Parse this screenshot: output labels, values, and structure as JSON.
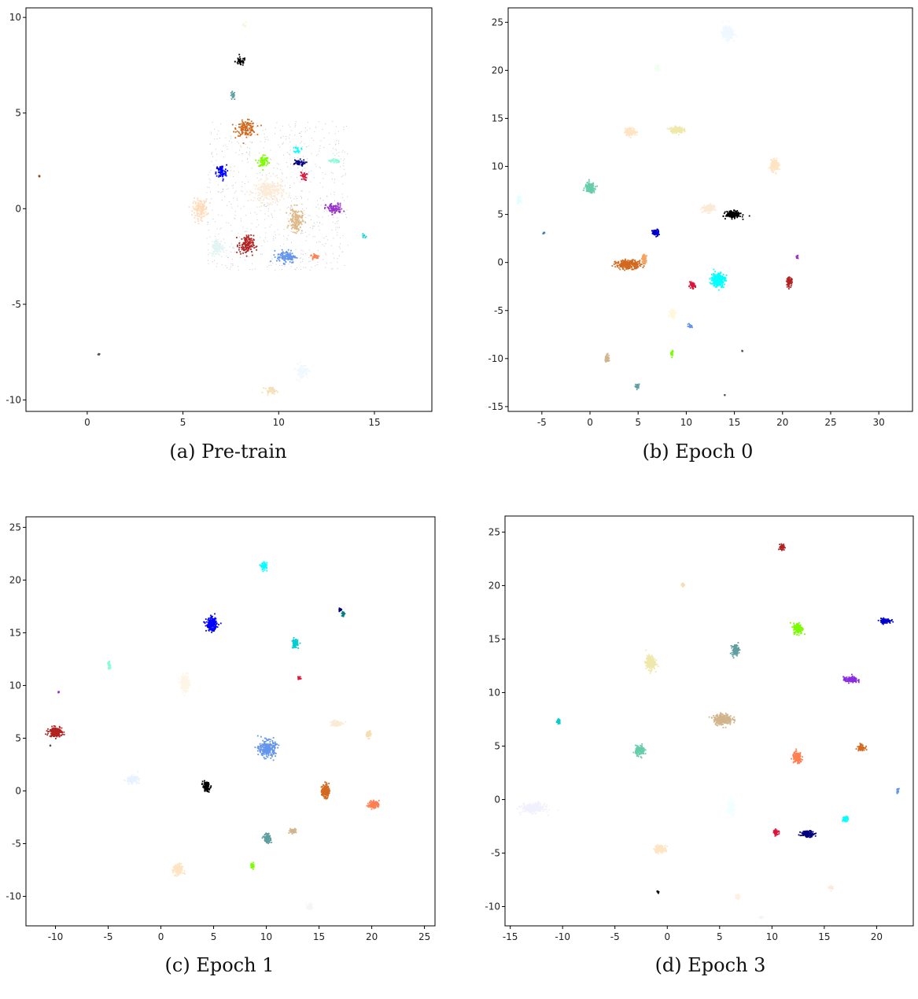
{
  "figure": {
    "captions": [
      "(a) Pre-train",
      "(b) Epoch 0",
      "(c) Epoch 1",
      "(d) Epoch 3"
    ]
  },
  "chart_data": [
    {
      "type": "scatter",
      "caption": "(a) Pre-train",
      "xlim": [
        -3.2,
        18.0
      ],
      "ylim": [
        -10.6,
        10.5
      ],
      "xticks": [
        0,
        5,
        10,
        15
      ],
      "yticks": [
        -10,
        -5,
        0,
        5,
        10
      ],
      "grid": false,
      "background_points": {
        "color": "#b0b0b0",
        "x_range": [
          6.2,
          13.6
        ],
        "y_range": [
          -3.2,
          4.6
        ],
        "density": "sparse"
      },
      "clusters": [
        {
          "color": "#000000",
          "x": 8.0,
          "y": 7.7,
          "spread": [
            0.25,
            0.2
          ]
        },
        {
          "color": "#5f9ea0",
          "x": 7.6,
          "y": 5.9,
          "spread": [
            0.12,
            0.2
          ]
        },
        {
          "color": "#d2691e",
          "x": 8.3,
          "y": 4.2,
          "spread": [
            0.45,
            0.35
          ]
        },
        {
          "color": "#0000ff",
          "x": 7.0,
          "y": 1.9,
          "spread": [
            0.25,
            0.35
          ]
        },
        {
          "color": "#7cfc00",
          "x": 9.2,
          "y": 2.5,
          "spread": [
            0.25,
            0.3
          ]
        },
        {
          "color": "#00ffff",
          "x": 11.0,
          "y": 3.1,
          "spread": [
            0.15,
            0.15
          ]
        },
        {
          "color": "#000080",
          "x": 11.0,
          "y": 2.4,
          "spread": [
            0.35,
            0.15
          ]
        },
        {
          "color": "#dc143c",
          "x": 11.3,
          "y": 1.7,
          "spread": [
            0.15,
            0.2
          ]
        },
        {
          "color": "#7fffd4",
          "x": 12.9,
          "y": 2.5,
          "spread": [
            0.25,
            0.1
          ]
        },
        {
          "color": "#9932cc",
          "x": 12.9,
          "y": 0.0,
          "spread": [
            0.4,
            0.25
          ]
        },
        {
          "color": "#ffdab9",
          "x": 5.9,
          "y": 0.0,
          "spread": [
            0.35,
            0.45
          ]
        },
        {
          "color": "#faebd7",
          "x": 9.5,
          "y": 0.9,
          "spread": [
            0.7,
            0.5
          ]
        },
        {
          "color": "#deb887",
          "x": 10.9,
          "y": -0.6,
          "spread": [
            0.3,
            0.55
          ]
        },
        {
          "color": "#b22222",
          "x": 8.3,
          "y": -1.9,
          "spread": [
            0.35,
            0.45
          ]
        },
        {
          "color": "#6495ed",
          "x": 10.4,
          "y": -2.5,
          "spread": [
            0.45,
            0.3
          ]
        },
        {
          "color": "#ff7f50",
          "x": 11.9,
          "y": -2.5,
          "spread": [
            0.2,
            0.15
          ]
        },
        {
          "color": "#00ced1",
          "x": 14.5,
          "y": -1.4,
          "spread": [
            0.1,
            0.08
          ]
        },
        {
          "color": "#e0f4f4",
          "x": 6.8,
          "y": -2.0,
          "spread": [
            0.3,
            0.4
          ]
        },
        {
          "color": "#f0f8ff",
          "x": 11.2,
          "y": -8.5,
          "spread": [
            0.3,
            0.35
          ]
        },
        {
          "color": "#f5deb3",
          "x": 9.6,
          "y": -9.5,
          "spread": [
            0.3,
            0.15
          ]
        },
        {
          "color": "#f5f5dc",
          "x": 8.2,
          "y": 9.6,
          "spread": [
            0.08,
            0.1
          ]
        },
        {
          "color": "#8b4513",
          "x": -2.5,
          "y": 1.7,
          "spread": [
            0.04,
            0.04
          ]
        },
        {
          "color": "#555555",
          "x": 0.6,
          "y": -7.6,
          "spread": [
            0.04,
            0.04
          ]
        }
      ]
    },
    {
      "type": "scatter",
      "caption": "(b) Epoch 0",
      "xlim": [
        -8.5,
        33.5
      ],
      "ylim": [
        -15.5,
        26.5
      ],
      "xticks": [
        -5,
        0,
        5,
        10,
        15,
        20,
        25,
        30
      ],
      "yticks": [
        -15,
        -10,
        -5,
        0,
        5,
        10,
        15,
        20,
        25
      ],
      "grid": false,
      "clusters": [
        {
          "color": "#f0f8ff",
          "x": 14.3,
          "y": 23.9,
          "spread": [
            0.5,
            0.6
          ]
        },
        {
          "color": "#f0fff0",
          "x": 7.0,
          "y": 20.2,
          "spread": [
            0.2,
            0.3
          ]
        },
        {
          "color": "#ffe4c4",
          "x": 4.2,
          "y": 13.6,
          "spread": [
            0.5,
            0.35
          ]
        },
        {
          "color": "#eee8aa",
          "x": 9.0,
          "y": 13.8,
          "spread": [
            0.6,
            0.3
          ]
        },
        {
          "color": "#ffe4c4",
          "x": 19.2,
          "y": 10.1,
          "spread": [
            0.4,
            0.5
          ]
        },
        {
          "color": "#66cdaa",
          "x": 0.0,
          "y": 7.8,
          "spread": [
            0.45,
            0.45
          ]
        },
        {
          "color": "#e0ffff",
          "x": -7.4,
          "y": 6.5,
          "spread": [
            0.15,
            0.3
          ]
        },
        {
          "color": "#faebd7",
          "x": 12.3,
          "y": 5.6,
          "spread": [
            0.5,
            0.35
          ]
        },
        {
          "color": "#000000",
          "x": 14.9,
          "y": 5.0,
          "spread": [
            0.7,
            0.3
          ]
        },
        {
          "color": "#0000cd",
          "x": 6.8,
          "y": 3.1,
          "spread": [
            0.3,
            0.3
          ]
        },
        {
          "color": "#4682b4",
          "x": -4.8,
          "y": 3.1,
          "spread": [
            0.08,
            0.1
          ]
        },
        {
          "color": "#d2691e",
          "x": 4.0,
          "y": -0.2,
          "spread": [
            1.2,
            0.4
          ]
        },
        {
          "color": "#f4a460",
          "x": 5.6,
          "y": 0.4,
          "spread": [
            0.2,
            0.4
          ]
        },
        {
          "color": "#00ffff",
          "x": 13.3,
          "y": -1.8,
          "spread": [
            0.65,
            0.65
          ]
        },
        {
          "color": "#dc143c",
          "x": 10.6,
          "y": -2.4,
          "spread": [
            0.3,
            0.25
          ]
        },
        {
          "color": "#b22222",
          "x": 20.7,
          "y": -2.0,
          "spread": [
            0.25,
            0.4
          ]
        },
        {
          "color": "#9932cc",
          "x": 21.5,
          "y": 0.6,
          "spread": [
            0.1,
            0.15
          ]
        },
        {
          "color": "#fff8dc",
          "x": 8.6,
          "y": -5.3,
          "spread": [
            0.3,
            0.4
          ]
        },
        {
          "color": "#6495ed",
          "x": 10.4,
          "y": -6.6,
          "spread": [
            0.2,
            0.15
          ]
        },
        {
          "color": "#7cfc00",
          "x": 8.5,
          "y": -9.4,
          "spread": [
            0.1,
            0.25
          ]
        },
        {
          "color": "#d2b48c",
          "x": 1.8,
          "y": -10.0,
          "spread": [
            0.2,
            0.35
          ]
        },
        {
          "color": "#5f9ea0",
          "x": 4.9,
          "y": -12.9,
          "spread": [
            0.15,
            0.25
          ]
        },
        {
          "color": "#555555",
          "x": 15.8,
          "y": -9.2,
          "spread": [
            0.04,
            0.04
          ]
        },
        {
          "color": "#555555",
          "x": 14.0,
          "y": -13.8,
          "spread": [
            0.04,
            0.04
          ]
        }
      ]
    },
    {
      "type": "scatter",
      "caption": "(c) Epoch 1",
      "xlim": [
        -12.8,
        26.0
      ],
      "ylim": [
        -12.8,
        26.0
      ],
      "xticks": [
        -10,
        -5,
        0,
        5,
        10,
        15,
        20,
        25
      ],
      "yticks": [
        -10,
        -5,
        0,
        5,
        10,
        15,
        20,
        25
      ],
      "grid": false,
      "clusters": [
        {
          "color": "#00ffff",
          "x": 9.8,
          "y": 21.3,
          "spread": [
            0.25,
            0.3
          ]
        },
        {
          "color": "#0000ff",
          "x": 4.8,
          "y": 15.8,
          "spread": [
            0.45,
            0.55
          ]
        },
        {
          "color": "#000080",
          "x": 17.0,
          "y": 17.2,
          "spread": [
            0.15,
            0.15
          ]
        },
        {
          "color": "#008080",
          "x": 17.3,
          "y": 16.8,
          "spread": [
            0.12,
            0.2
          ]
        },
        {
          "color": "#00ced1",
          "x": 12.7,
          "y": 14.0,
          "spread": [
            0.25,
            0.4
          ]
        },
        {
          "color": "#7fffd4",
          "x": -4.9,
          "y": 11.9,
          "spread": [
            0.12,
            0.3
          ]
        },
        {
          "color": "#dc143c",
          "x": 13.1,
          "y": 10.7,
          "spread": [
            0.15,
            0.15
          ]
        },
        {
          "color": "#fdf5e6",
          "x": 2.3,
          "y": 10.2,
          "spread": [
            0.35,
            0.7
          ]
        },
        {
          "color": "#9932cc",
          "x": -9.7,
          "y": 9.4,
          "spread": [
            0.06,
            0.06
          ]
        },
        {
          "color": "#b22222",
          "x": -10.0,
          "y": 5.6,
          "spread": [
            0.55,
            0.4
          ]
        },
        {
          "color": "#faebd7",
          "x": 16.6,
          "y": 6.4,
          "spread": [
            0.5,
            0.25
          ]
        },
        {
          "color": "#f5deb3",
          "x": 19.7,
          "y": 5.4,
          "spread": [
            0.2,
            0.3
          ]
        },
        {
          "color": "#6495ed",
          "x": 10.1,
          "y": 4.0,
          "spread": [
            0.7,
            0.7
          ]
        },
        {
          "color": "#e6f2ff",
          "x": -2.7,
          "y": 1.1,
          "spread": [
            0.5,
            0.3
          ]
        },
        {
          "color": "#000000",
          "x": 4.3,
          "y": 0.4,
          "spread": [
            0.3,
            0.4
          ]
        },
        {
          "color": "#d2691e",
          "x": 15.6,
          "y": 0.0,
          "spread": [
            0.3,
            0.6
          ]
        },
        {
          "color": "#ff7f50",
          "x": 20.2,
          "y": -1.3,
          "spread": [
            0.45,
            0.3
          ]
        },
        {
          "color": "#5f9ea0",
          "x": 10.1,
          "y": -4.5,
          "spread": [
            0.3,
            0.4
          ]
        },
        {
          "color": "#d2b48c",
          "x": 12.5,
          "y": -3.8,
          "spread": [
            0.3,
            0.2
          ]
        },
        {
          "color": "#7cfc00",
          "x": 8.7,
          "y": -7.1,
          "spread": [
            0.15,
            0.25
          ]
        },
        {
          "color": "#ffe4c4",
          "x": 1.6,
          "y": -7.5,
          "spread": [
            0.4,
            0.5
          ]
        },
        {
          "color": "#f5f5f5",
          "x": 14.1,
          "y": -11.0,
          "spread": [
            0.2,
            0.3
          ]
        },
        {
          "color": "#555555",
          "x": -10.5,
          "y": 4.3,
          "spread": [
            0.04,
            0.04
          ]
        }
      ]
    },
    {
      "type": "scatter",
      "caption": "(d) Epoch 3",
      "xlim": [
        -15.5,
        23.5
      ],
      "ylim": [
        -11.8,
        26.5
      ],
      "xticks": [
        -15,
        -10,
        -5,
        0,
        5,
        10,
        15,
        20
      ],
      "yticks": [
        -10,
        -5,
        0,
        5,
        10,
        15,
        20,
        25
      ],
      "grid": false,
      "clusters": [
        {
          "color": "#b22222",
          "x": 11.0,
          "y": 23.6,
          "spread": [
            0.2,
            0.25
          ]
        },
        {
          "color": "#f5deb3",
          "x": 1.5,
          "y": 20.1,
          "spread": [
            0.15,
            0.15
          ]
        },
        {
          "color": "#7cfc00",
          "x": 12.5,
          "y": 16.0,
          "spread": [
            0.4,
            0.45
          ]
        },
        {
          "color": "#0000cd",
          "x": 20.8,
          "y": 16.7,
          "spread": [
            0.5,
            0.2
          ]
        },
        {
          "color": "#5f9ea0",
          "x": 6.5,
          "y": 14.0,
          "spread": [
            0.3,
            0.45
          ]
        },
        {
          "color": "#eee8aa",
          "x": -1.6,
          "y": 12.8,
          "spread": [
            0.4,
            0.6
          ]
        },
        {
          "color": "#8a2be2",
          "x": 17.5,
          "y": 11.2,
          "spread": [
            0.6,
            0.25
          ]
        },
        {
          "color": "#00ced1",
          "x": -10.4,
          "y": 7.3,
          "spread": [
            0.15,
            0.2
          ]
        },
        {
          "color": "#d2b48c",
          "x": 5.3,
          "y": 7.5,
          "spread": [
            0.8,
            0.45
          ]
        },
        {
          "color": "#66cdaa",
          "x": -2.6,
          "y": 4.6,
          "spread": [
            0.4,
            0.4
          ]
        },
        {
          "color": "#ff7f50",
          "x": 12.4,
          "y": 3.9,
          "spread": [
            0.4,
            0.45
          ]
        },
        {
          "color": "#d2691e",
          "x": 18.5,
          "y": 4.9,
          "spread": [
            0.3,
            0.25
          ]
        },
        {
          "color": "#6495ed",
          "x": 22.0,
          "y": 0.8,
          "spread": [
            0.1,
            0.2
          ]
        },
        {
          "color": "#f0f0ff",
          "x": -12.8,
          "y": -0.8,
          "spread": [
            1.0,
            0.4
          ]
        },
        {
          "color": "#f0ffff",
          "x": 6.1,
          "y": -0.8,
          "spread": [
            0.3,
            0.6
          ]
        },
        {
          "color": "#00ffff",
          "x": 17.0,
          "y": -1.8,
          "spread": [
            0.25,
            0.2
          ]
        },
        {
          "color": "#dc143c",
          "x": 10.4,
          "y": -3.1,
          "spread": [
            0.2,
            0.25
          ]
        },
        {
          "color": "#000080",
          "x": 13.4,
          "y": -3.2,
          "spread": [
            0.6,
            0.25
          ]
        },
        {
          "color": "#ffe4c4",
          "x": -0.7,
          "y": -4.6,
          "spread": [
            0.5,
            0.3
          ]
        },
        {
          "color": "#faebd7",
          "x": 15.6,
          "y": -8.2,
          "spread": [
            0.2,
            0.2
          ]
        },
        {
          "color": "#000000",
          "x": -0.9,
          "y": -8.6,
          "spread": [
            0.08,
            0.12
          ]
        },
        {
          "color": "#fff0e0",
          "x": 6.7,
          "y": -9.1,
          "spread": [
            0.2,
            0.2
          ]
        },
        {
          "color": "#f5f5f5",
          "x": 9.0,
          "y": -11.0,
          "spread": [
            0.15,
            0.15
          ]
        }
      ]
    }
  ]
}
